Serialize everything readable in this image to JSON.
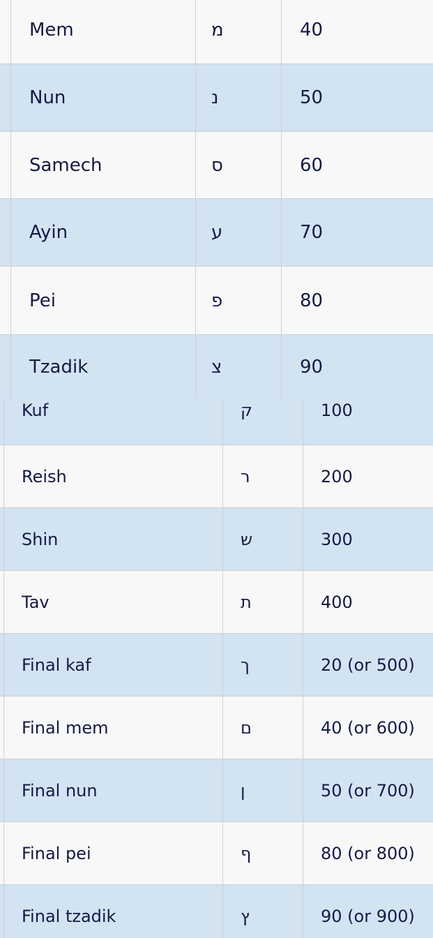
{
  "colors": {
    "row_alt": "#d2e3f2",
    "row": "#f8f8f8",
    "text": "#141a44",
    "border": "#d0d0d0"
  },
  "table_top": {
    "rows": [
      {
        "name": "Mem",
        "letter": "מ",
        "value": "40"
      },
      {
        "name": "Nun",
        "letter": "נ",
        "value": "50"
      },
      {
        "name": "Samech",
        "letter": "ס",
        "value": "60"
      },
      {
        "name": "Ayin",
        "letter": "ע",
        "value": "70"
      },
      {
        "name": "Pei",
        "letter": "פ",
        "value": "80"
      },
      {
        "name": "Tzadik",
        "letter": "צ",
        "value": "90"
      }
    ]
  },
  "table_bottom": {
    "rows": [
      {
        "name": "Kuf",
        "letter": "ק",
        "value": "100"
      },
      {
        "name": "Reish",
        "letter": "ר",
        "value": "200"
      },
      {
        "name": "Shin",
        "letter": "ש",
        "value": "300"
      },
      {
        "name": "Tav",
        "letter": "ת",
        "value": "400"
      },
      {
        "name": "Final kaf",
        "letter": "ך",
        "value": "20 (or 500)"
      },
      {
        "name": "Final mem",
        "letter": "ם",
        "value": "40 (or 600)"
      },
      {
        "name": "Final nun",
        "letter": "ן",
        "value": "50 (or 700)"
      },
      {
        "name": "Final pei",
        "letter": "ף",
        "value": "80 (or 800)"
      },
      {
        "name": "Final tzadik",
        "letter": "ץ",
        "value": "90 (or 900)"
      }
    ]
  }
}
